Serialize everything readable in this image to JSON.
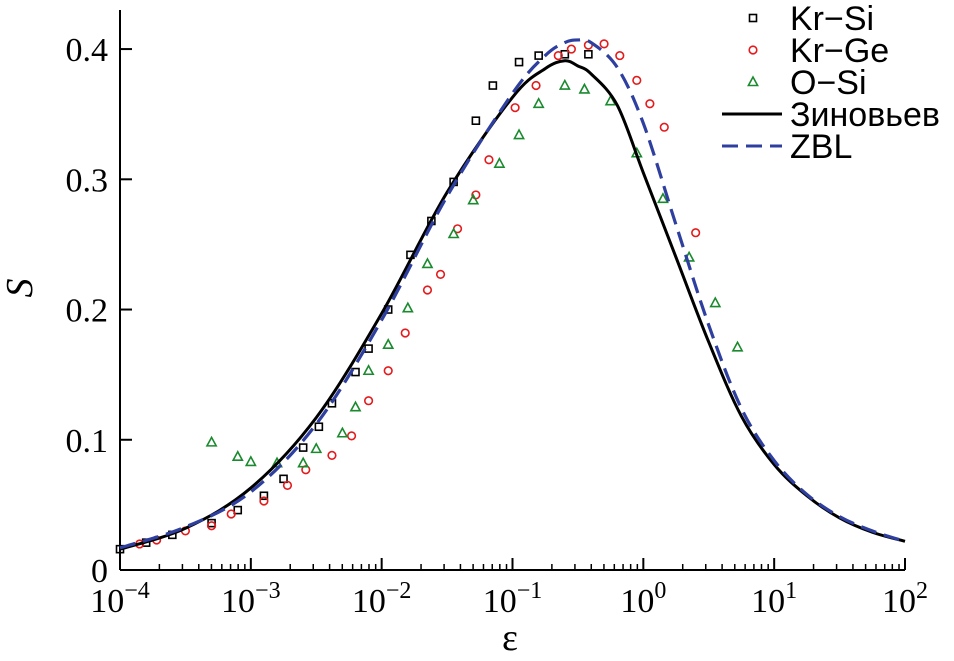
{
  "chart_data": {
    "type": "scatter",
    "title": "",
    "xlabel": "ε",
    "ylabel": "S",
    "xscale": "log",
    "xlim_exp": [
      -4,
      2
    ],
    "ylim": [
      0,
      0.43
    ],
    "yticks": [
      {
        "value": 0,
        "label": "0"
      },
      {
        "value": 0.1,
        "label": "0.1"
      },
      {
        "value": 0.2,
        "label": "0.2"
      },
      {
        "value": 0.3,
        "label": "0.3"
      },
      {
        "value": 0.4,
        "label": "0.4"
      }
    ],
    "xticks": [
      {
        "exp": -4,
        "base": "10",
        "sup": "−4"
      },
      {
        "exp": -3,
        "base": "10",
        "sup": "−3"
      },
      {
        "exp": -2,
        "base": "10",
        "sup": "−2"
      },
      {
        "exp": -1,
        "base": "10",
        "sup": "−1"
      },
      {
        "exp": 0,
        "base": "10",
        "sup": "0"
      },
      {
        "exp": 1,
        "base": "10",
        "sup": "1"
      },
      {
        "exp": 2,
        "base": "10",
        "sup": "2"
      }
    ],
    "legend_position": "top-right",
    "series": [
      {
        "name": "Kr−Si",
        "kind": "scatter",
        "marker": "square",
        "color": "#000000",
        "log10x": [
          -4.0,
          -3.8,
          -3.6,
          -3.3,
          -3.1,
          -2.9,
          -2.75,
          -2.6,
          -2.48,
          -2.38,
          -2.2,
          -2.1,
          -1.95,
          -1.78,
          -1.62,
          -1.45,
          -1.28,
          -1.15,
          -0.95,
          -0.8,
          -0.6,
          -0.42
        ],
        "y": [
          0.016,
          0.021,
          0.027,
          0.036,
          0.046,
          0.057,
          0.07,
          0.094,
          0.11,
          0.128,
          0.152,
          0.17,
          0.2,
          0.242,
          0.268,
          0.298,
          0.345,
          0.372,
          0.39,
          0.395,
          0.396,
          0.396
        ]
      },
      {
        "name": "Kr−Ge",
        "kind": "scatter",
        "marker": "circle",
        "color": "#e41a1c",
        "log10x": [
          -3.85,
          -3.72,
          -3.5,
          -3.3,
          -3.15,
          -2.9,
          -2.72,
          -2.58,
          -2.38,
          -2.23,
          -2.1,
          -1.95,
          -1.82,
          -1.65,
          -1.55,
          -1.42,
          -1.28,
          -1.18,
          -0.98,
          -0.82,
          -0.65,
          -0.55,
          -0.42,
          -0.3,
          -0.18,
          -0.05,
          0.05,
          0.16,
          0.4
        ],
        "y": [
          0.02,
          0.023,
          0.03,
          0.034,
          0.043,
          0.053,
          0.065,
          0.077,
          0.088,
          0.103,
          0.13,
          0.153,
          0.182,
          0.215,
          0.227,
          0.262,
          0.288,
          0.315,
          0.355,
          0.372,
          0.395,
          0.4,
          0.403,
          0.404,
          0.395,
          0.376,
          0.358,
          0.34,
          0.259
        ]
      },
      {
        "name": "O−Si",
        "kind": "scatter",
        "marker": "triangle",
        "color": "#1a8a2e",
        "log10x": [
          -3.3,
          -3.1,
          -3.0,
          -2.8,
          -2.6,
          -2.5,
          -2.3,
          -2.2,
          -2.1,
          -1.95,
          -1.8,
          -1.65,
          -1.45,
          -1.3,
          -1.1,
          -0.95,
          -0.8,
          -0.6,
          -0.45,
          -0.25,
          -0.05,
          0.15,
          0.35,
          0.55,
          0.72
        ],
        "y": [
          0.098,
          0.087,
          0.083,
          0.082,
          0.082,
          0.093,
          0.105,
          0.125,
          0.153,
          0.173,
          0.201,
          0.235,
          0.258,
          0.284,
          0.312,
          0.334,
          0.358,
          0.372,
          0.369,
          0.36,
          0.32,
          0.285,
          0.24,
          0.205,
          0.171
        ]
      },
      {
        "name": "Зиновьев",
        "kind": "line",
        "style": "solid",
        "color": "#000000",
        "log10x": [
          -4.0,
          -3.5,
          -3.0,
          -2.5,
          -2.0,
          -1.5,
          -1.0,
          -0.75,
          -0.6,
          -0.5,
          -0.4,
          -0.2,
          0.0,
          0.25,
          0.5,
          0.75,
          1.0,
          1.25,
          1.5,
          1.75,
          2.0
        ],
        "y": [
          0.016,
          0.032,
          0.063,
          0.117,
          0.197,
          0.29,
          0.363,
          0.385,
          0.391,
          0.387,
          0.381,
          0.357,
          0.305,
          0.24,
          0.175,
          0.118,
          0.081,
          0.057,
          0.04,
          0.029,
          0.022
        ]
      },
      {
        "name": "ZBL",
        "kind": "line",
        "style": "dashed",
        "color": "#2e3f9f",
        "log10x": [
          -4.0,
          -3.5,
          -3.0,
          -2.5,
          -2.0,
          -1.5,
          -1.0,
          -0.75,
          -0.6,
          -0.5,
          -0.4,
          -0.2,
          0.0,
          0.25,
          0.5,
          0.75,
          1.0,
          1.25,
          1.5,
          1.75,
          2.0
        ],
        "y": [
          0.017,
          0.033,
          0.06,
          0.112,
          0.192,
          0.287,
          0.366,
          0.395,
          0.405,
          0.407,
          0.405,
          0.386,
          0.343,
          0.265,
          0.188,
          0.124,
          0.084,
          0.058,
          0.041,
          0.03,
          0.022
        ]
      }
    ]
  }
}
